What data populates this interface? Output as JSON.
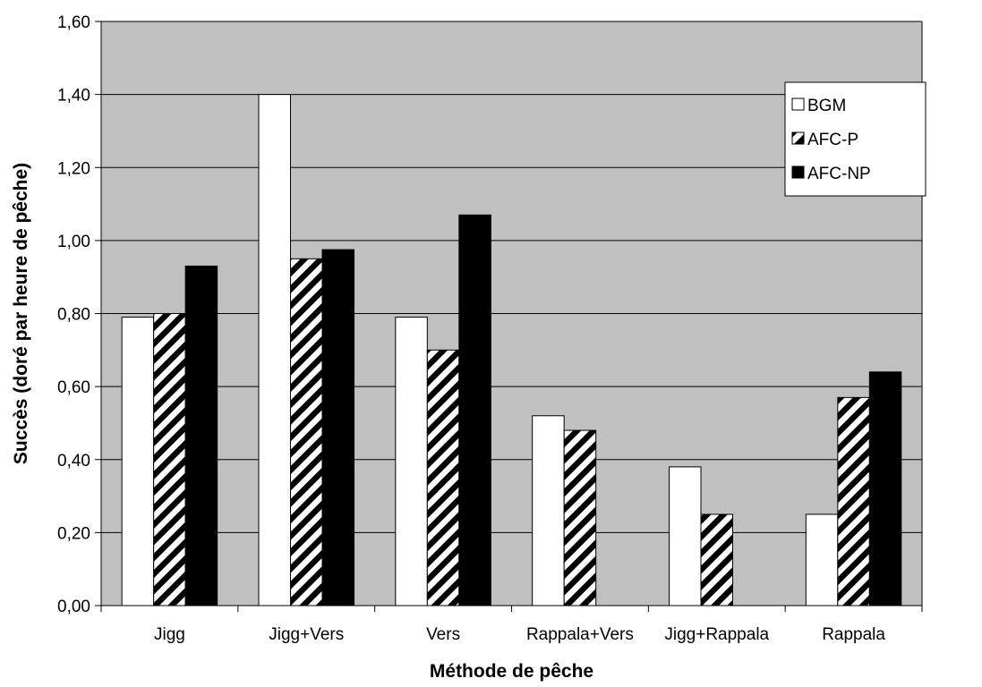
{
  "chart_data": {
    "type": "bar",
    "title": "",
    "xlabel": "Méthode de pêche",
    "ylabel": "Succès (doré par heure de pêche)",
    "categories": [
      "Jigg",
      "Jigg+Vers",
      "Vers",
      "Rappala+Vers",
      "Jigg+Rappala",
      "Rappala"
    ],
    "series": [
      {
        "name": "BGM",
        "values": [
          0.79,
          1.4,
          0.79,
          0.52,
          0.38,
          0.25
        ],
        "fill": "white"
      },
      {
        "name": "AFC-P",
        "values": [
          0.8,
          0.95,
          0.7,
          0.48,
          0.25,
          0.57
        ],
        "fill": "hatch"
      },
      {
        "name": "AFC-NP",
        "values": [
          0.93,
          0.975,
          1.07,
          null,
          null,
          0.64
        ],
        "fill": "black"
      }
    ],
    "ylim": [
      0,
      1.6
    ],
    "yticks": [
      0,
      0.2,
      0.4,
      0.6,
      0.8,
      1.0,
      1.2,
      1.4,
      1.6
    ],
    "ytick_labels": [
      "0,00",
      "0,20",
      "0,40",
      "0,60",
      "0,80",
      "1,00",
      "1,20",
      "1,40",
      "1,60"
    ],
    "grid": true,
    "legend_position": "top-right",
    "colors": {
      "plot_background": "#c0c0c0",
      "bar_fill": "#ffffff",
      "bar_dark": "#000000",
      "gridline": "#000000"
    }
  }
}
